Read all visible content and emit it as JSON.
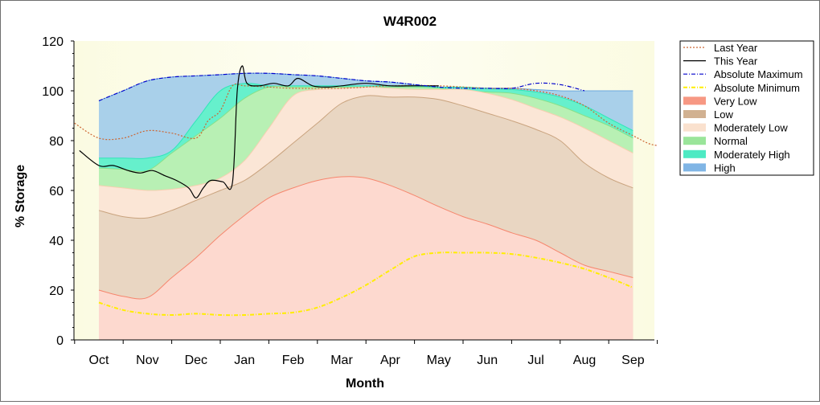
{
  "chart_data": {
    "type": "area",
    "title": "W4R002",
    "xlabel": "Month",
    "ylabel": "% Storage",
    "ylim": [
      0,
      120
    ],
    "yticks": [
      0,
      20,
      40,
      60,
      80,
      100,
      120
    ],
    "categories": [
      "Oct",
      "Nov",
      "Dec",
      "Jan",
      "Feb",
      "Mar",
      "Apr",
      "May",
      "Jun",
      "Jul",
      "Aug",
      "Sep"
    ],
    "legend_position": "right",
    "grid": false,
    "bands_x": [
      0,
      0.5,
      1,
      1.5,
      2,
      2.5,
      3,
      3.5,
      4,
      4.5,
      5,
      5.5,
      6,
      6.5,
      7,
      7.5,
      8,
      8.5,
      9,
      9.5,
      10,
      10.5,
      11
    ],
    "bands": [
      {
        "name": "Very Low",
        "color": "#f6866d",
        "fill": "#fdd9cf",
        "upper": [
          20,
          17.5,
          17,
          25,
          33,
          42,
          50,
          57,
          61,
          64,
          65.5,
          65,
          62,
          58,
          53.5,
          49.5,
          46.5,
          43,
          40,
          35,
          30,
          27.5,
          25
        ]
      },
      {
        "name": "Low",
        "color": "#c9a37e",
        "fill": "#e9d6c2",
        "upper": [
          52,
          49.5,
          49,
          52,
          56,
          60,
          64,
          71,
          79,
          87,
          95,
          98,
          97.5,
          97.5,
          96.5,
          94,
          91,
          88,
          84.5,
          80,
          71,
          65,
          61
        ]
      },
      {
        "name": "Moderately Low",
        "color": "#f6cfb0",
        "fill": "#fbe6d6",
        "upper": [
          62,
          61,
          60,
          60.5,
          62,
          65,
          72,
          85,
          98,
          100.5,
          101,
          101.5,
          101,
          100.5,
          100.5,
          100.5,
          99,
          96.5,
          93,
          89.5,
          85,
          80,
          75
        ]
      },
      {
        "name": "Normal",
        "color": "#88e088",
        "fill": "#b8f0b4",
        "upper": [
          69,
          68.5,
          68,
          75,
          82,
          89,
          97,
          101.5,
          101.5,
          101.5,
          101.5,
          101.5,
          101.5,
          101.5,
          101,
          100,
          99.5,
          99,
          97,
          94,
          90,
          86,
          81
        ]
      },
      {
        "name": "Moderately High",
        "color": "#2ee6b8",
        "fill": "#66f0cc",
        "upper": [
          73,
          73,
          73,
          76,
          88,
          100,
          103,
          102,
          102,
          102,
          102,
          102,
          102,
          102,
          101.5,
          101.5,
          101,
          100.5,
          99.5,
          97.5,
          94,
          89,
          84
        ]
      },
      {
        "name": "High",
        "color": "#6aa8e0",
        "fill": "#a9d0ea",
        "upper": [
          96,
          100,
          104,
          105.5,
          106,
          106.5,
          107,
          107,
          106.5,
          106,
          105,
          104,
          103.5,
          102.5,
          101.5,
          101,
          101,
          101,
          100.5,
          100,
          100,
          100,
          100
        ]
      }
    ],
    "series": [
      {
        "name": "Last Year",
        "color": "#cc6633",
        "style": "dotted",
        "x": [
          -0.5,
          0,
          0.5,
          1,
          1.5,
          2,
          2.25,
          2.5,
          2.75,
          3,
          3.5,
          4,
          5,
          6,
          7,
          8,
          8.5,
          9,
          9.5,
          10,
          10.5,
          11,
          11.3,
          11.5
        ],
        "y": [
          87,
          81,
          81,
          84,
          83,
          81,
          88,
          92,
          102,
          102,
          101.5,
          101,
          101,
          102,
          102,
          101,
          101,
          100,
          98,
          94,
          87,
          82,
          79,
          78
        ]
      },
      {
        "name": "This Year",
        "color": "#000000",
        "style": "solid",
        "x": [
          -0.4,
          0,
          0.3,
          0.6,
          0.85,
          1.1,
          1.35,
          1.6,
          1.85,
          2,
          2.15,
          2.3,
          2.55,
          2.75,
          2.85,
          2.95,
          3.05,
          3.3,
          3.6,
          3.9,
          4.1,
          4.4,
          4.7,
          5,
          5.5,
          6,
          6.5,
          7
        ],
        "y": [
          76,
          70,
          70,
          68,
          67,
          68,
          66,
          64,
          61,
          57,
          61,
          64,
          63.5,
          63,
          100,
          110,
          103,
          102,
          103,
          102,
          105,
          102,
          101.5,
          102,
          103,
          102,
          102,
          102
        ]
      },
      {
        "name": "Absolute Maximum",
        "color": "#0000cc",
        "style": "dashdot",
        "x": [
          0,
          0.5,
          1,
          1.5,
          2,
          2.5,
          3,
          3.5,
          4,
          4.5,
          5,
          5.5,
          6,
          6.5,
          7,
          7.5,
          8,
          8.5,
          9,
          9.5,
          10
        ],
        "y": [
          96,
          100,
          104,
          105.5,
          106,
          106.5,
          107,
          107,
          106.5,
          106,
          105,
          104,
          103.5,
          102.5,
          101.5,
          101,
          101,
          101,
          103,
          102.5,
          100
        ]
      },
      {
        "name": "Absolute Minimum",
        "color": "#ffee00",
        "style": "dashdot",
        "x": [
          0,
          0.5,
          1,
          1.5,
          2,
          2.5,
          3,
          3.5,
          4,
          4.5,
          5,
          5.5,
          6,
          6.5,
          7,
          7.5,
          8,
          8.5,
          9,
          9.5,
          10,
          10.5,
          11
        ],
        "y": [
          15,
          12,
          10.5,
          10,
          10.5,
          10,
          10,
          10.5,
          11,
          13,
          17,
          22,
          28,
          33.5,
          35,
          35,
          35,
          34.5,
          33,
          31,
          28.5,
          25,
          21
        ]
      }
    ]
  },
  "legend": {
    "items": [
      {
        "label": "Last Year",
        "kind": "line",
        "color": "#cc6633",
        "style": "dotted"
      },
      {
        "label": "This Year",
        "kind": "line",
        "color": "#000000",
        "style": "solid"
      },
      {
        "label": "Absolute Maximum",
        "kind": "line",
        "color": "#0000cc",
        "style": "dashdot"
      },
      {
        "label": "Absolute Minimum",
        "kind": "line",
        "color": "#ffee00",
        "style": "dashdot"
      },
      {
        "label": "Very Low",
        "kind": "area",
        "color": "#f6866d"
      },
      {
        "label": "Low",
        "kind": "area",
        "color": "#c9a37e"
      },
      {
        "label": "Moderately Low",
        "kind": "area",
        "color": "#f9dcc6"
      },
      {
        "label": "Normal",
        "kind": "area",
        "color": "#88e088"
      },
      {
        "label": "Moderately High",
        "kind": "area",
        "color": "#2ee6b8"
      },
      {
        "label": "High",
        "kind": "area",
        "color": "#6aa8e0"
      }
    ]
  }
}
